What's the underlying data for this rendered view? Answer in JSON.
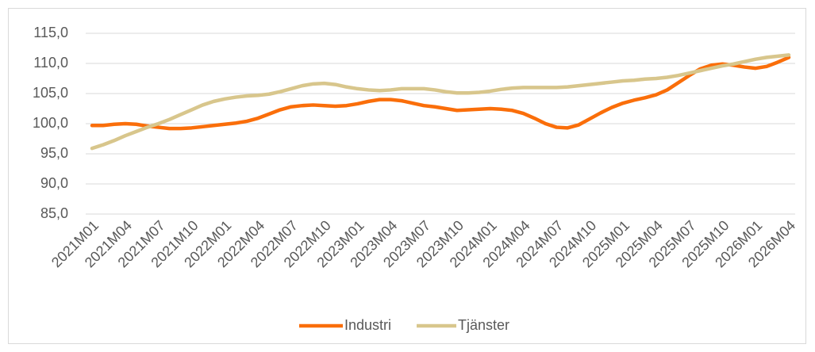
{
  "chart_data": {
    "type": "line",
    "categories": [
      "2021M01",
      null,
      null,
      "2021M04",
      null,
      null,
      "2021M07",
      null,
      null,
      "2021M10",
      null,
      null,
      "2022M01",
      null,
      null,
      "2022M04",
      null,
      null,
      "2022M07",
      null,
      null,
      "2022M10",
      null,
      null,
      "2023M01",
      null,
      null,
      "2023M04",
      null,
      null,
      "2023M07",
      null,
      null,
      "2023M10",
      null,
      null,
      "2024M01",
      null,
      null,
      "2024M04",
      null,
      null,
      "2024M07",
      null,
      null,
      "2024M10",
      null,
      null,
      "2025M01",
      null,
      null,
      "2025M04",
      null,
      null,
      "2025M07",
      null,
      null,
      "2025M10",
      null,
      null,
      "2026M01",
      null,
      null,
      "2026M04"
    ],
    "series": [
      {
        "name": "Industri",
        "color": "#fa6e0a",
        "values": [
          99.7,
          99.7,
          99.9,
          100.0,
          99.9,
          99.6,
          99.4,
          99.2,
          99.2,
          99.3,
          99.5,
          99.7,
          99.9,
          100.1,
          100.4,
          100.9,
          101.6,
          102.3,
          102.8,
          103.0,
          103.1,
          103.0,
          102.9,
          103.0,
          103.3,
          103.7,
          104.0,
          104.0,
          103.8,
          103.4,
          103.0,
          102.8,
          102.5,
          102.2,
          102.3,
          102.4,
          102.5,
          102.4,
          102.2,
          101.7,
          100.9,
          100.0,
          99.4,
          99.3,
          99.8,
          100.8,
          101.8,
          102.7,
          103.4,
          103.9,
          104.3,
          104.8,
          105.6,
          106.8,
          108.0,
          109.1,
          109.7,
          109.9,
          109.7,
          109.4,
          109.2,
          109.5,
          110.2,
          111.0
        ]
      },
      {
        "name": "Tjänster",
        "color": "#d8c68c",
        "values": [
          95.9,
          96.5,
          97.2,
          98.0,
          98.7,
          99.4,
          100.0,
          100.7,
          101.5,
          102.3,
          103.1,
          103.7,
          104.1,
          104.4,
          104.6,
          104.7,
          104.9,
          105.3,
          105.8,
          106.3,
          106.6,
          106.7,
          106.5,
          106.1,
          105.8,
          105.6,
          105.5,
          105.6,
          105.8,
          105.8,
          105.8,
          105.6,
          105.3,
          105.1,
          105.1,
          105.2,
          105.4,
          105.7,
          105.9,
          106.0,
          106.0,
          106.0,
          106.0,
          106.1,
          106.3,
          106.5,
          106.7,
          106.9,
          107.1,
          107.2,
          107.4,
          107.5,
          107.7,
          108.0,
          108.4,
          108.8,
          109.2,
          109.6,
          109.9,
          110.3,
          110.7,
          111.0,
          111.2,
          111.4
        ]
      }
    ],
    "ylim": [
      85,
      115
    ],
    "yticks": [
      {
        "value": 85,
        "label": "85,0"
      },
      {
        "value": 90,
        "label": "90,0"
      },
      {
        "value": 95,
        "label": "95,0"
      },
      {
        "value": 100,
        "label": "100,0"
      },
      {
        "value": 105,
        "label": "105,0"
      },
      {
        "value": 110,
        "label": "110,0"
      },
      {
        "value": 115,
        "label": "115,0"
      }
    ],
    "grid": true,
    "legend": "bottom"
  }
}
